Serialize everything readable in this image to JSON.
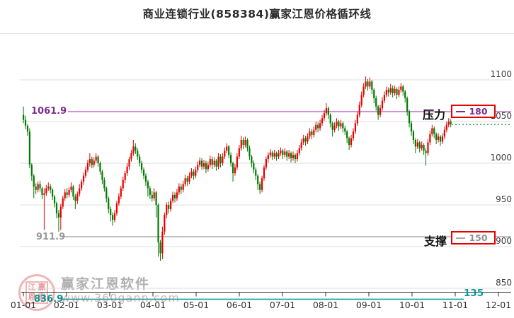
{
  "title": "商业连锁行业(858384)赢家江恩价格循环线",
  "watermark": {
    "brand": "赢家江恩软件",
    "url": "www.360gann.com",
    "seal": [
      "江",
      "赢",
      "恩",
      "家"
    ]
  },
  "colors": {
    "up": "#e60000",
    "down": "#007a00",
    "resistance_line": "#c77fd4",
    "resistance_text": "#7b2d8e",
    "support_line": "#b5b5b5",
    "support_text": "#8f8f8f",
    "cycle_line": "#18a0a0",
    "cycle_text": "#0f9b9b",
    "badge_border": "#e60000",
    "last_price_line": "#2aa04a",
    "grid": "#dcdcdc"
  },
  "chart_data": {
    "type": "candlestick",
    "title": "商业连锁行业(858384)赢家江恩价格循环线",
    "x_tick_labels": [
      "01-01",
      "02-01",
      "03-01",
      "04-01",
      "05-01",
      "06-01",
      "07-01",
      "08-01",
      "09-01",
      "10-01",
      "11-01",
      "12-01"
    ],
    "y_ticks": [
      1100,
      1050,
      1000,
      950,
      900,
      850
    ],
    "y_axis_side": "right",
    "ylim": [
      841,
      1156
    ],
    "grid": true,
    "up_color": "#e60000",
    "down_color": "#007a00",
    "gann_lines": [
      {
        "name": "resistance",
        "tag": "压力",
        "cycle": "180",
        "price_label": "1061.9",
        "value": 1061.9,
        "style": "solid"
      },
      {
        "name": "support",
        "tag": "支撑",
        "cycle": "150",
        "price_label": "911.9",
        "value": 911.9,
        "style": "solid"
      },
      {
        "name": "cycle-base",
        "tag": "",
        "cycle": "135",
        "price_label": "836.9",
        "value": 836.9,
        "style": "solid"
      }
    ],
    "last_price_line": {
      "value": 1046.5,
      "style": "dotted"
    },
    "ohlc": [
      [
        1058,
        1068,
        1048,
        1052
      ],
      [
        1052,
        1057,
        1041,
        1045
      ],
      [
        1045,
        1047,
        1033,
        1038
      ],
      [
        1038,
        1042,
        994,
        998
      ],
      [
        998,
        1000,
        979,
        985
      ],
      [
        985,
        987,
        958,
        972
      ],
      [
        972,
        976,
        963,
        968
      ],
      [
        968,
        978,
        965,
        975
      ],
      [
        975,
        979,
        966,
        970
      ],
      [
        970,
        972,
        957,
        962
      ],
      [
        962,
        970,
        920,
        964
      ],
      [
        964,
        974,
        961,
        970
      ],
      [
        970,
        977,
        967,
        972
      ],
      [
        972,
        975,
        964,
        968
      ],
      [
        968,
        970,
        956,
        960
      ],
      [
        960,
        962,
        947,
        952
      ],
      [
        952,
        954,
        934,
        940
      ],
      [
        940,
        944,
        918,
        935
      ],
      [
        935,
        951,
        920,
        948
      ],
      [
        948,
        961,
        945,
        958
      ],
      [
        958,
        969,
        955,
        965
      ],
      [
        965,
        970,
        958,
        962
      ],
      [
        962,
        971,
        959,
        968
      ],
      [
        968,
        977,
        965,
        972
      ],
      [
        972,
        974,
        956,
        960
      ],
      [
        960,
        963,
        945,
        955
      ],
      [
        955,
        966,
        951,
        963
      ],
      [
        963,
        975,
        960,
        970
      ],
      [
        970,
        981,
        967,
        978
      ],
      [
        978,
        989,
        974,
        985
      ],
      [
        985,
        996,
        982,
        992
      ],
      [
        992,
        1004,
        989,
        1000
      ],
      [
        1000,
        1012,
        996,
        1005
      ],
      [
        1005,
        1008,
        994,
        998
      ],
      [
        998,
        1007,
        995,
        1003
      ],
      [
        1003,
        1012,
        1000,
        1008
      ],
      [
        1008,
        1010,
        996,
        1000
      ],
      [
        1000,
        1002,
        986,
        990
      ],
      [
        990,
        992,
        975,
        980
      ],
      [
        980,
        983,
        966,
        970
      ],
      [
        970,
        972,
        953,
        958
      ],
      [
        958,
        960,
        940,
        945
      ],
      [
        945,
        948,
        930,
        938
      ],
      [
        938,
        941,
        925,
        932
      ],
      [
        932,
        944,
        929,
        940
      ],
      [
        940,
        955,
        937,
        952
      ],
      [
        952,
        964,
        949,
        960
      ],
      [
        960,
        973,
        957,
        970
      ],
      [
        970,
        984,
        967,
        980
      ],
      [
        980,
        991,
        976,
        988
      ],
      [
        988,
        1000,
        985,
        996
      ],
      [
        996,
        1008,
        992,
        1005
      ],
      [
        1005,
        1016,
        1002,
        1012
      ],
      [
        1012,
        1028,
        1009,
        1020
      ],
      [
        1020,
        1024,
        1011,
        1015
      ],
      [
        1015,
        1018,
        1004,
        1008
      ],
      [
        1008,
        1011,
        996,
        1000
      ],
      [
        1000,
        1003,
        988,
        992
      ],
      [
        992,
        995,
        981,
        985
      ],
      [
        985,
        988,
        973,
        978
      ],
      [
        978,
        980,
        960,
        970
      ],
      [
        970,
        973,
        957,
        962
      ],
      [
        962,
        967,
        954,
        958
      ],
      [
        958,
        970,
        955,
        965
      ],
      [
        965,
        967,
        935,
        950
      ],
      [
        950,
        952,
        888,
        905
      ],
      [
        905,
        908,
        883,
        892
      ],
      [
        892,
        924,
        885,
        918
      ],
      [
        918,
        941,
        914,
        938
      ],
      [
        938,
        953,
        934,
        950
      ],
      [
        950,
        954,
        940,
        945
      ],
      [
        945,
        958,
        942,
        955
      ],
      [
        955,
        966,
        952,
        962
      ],
      [
        962,
        965,
        953,
        958
      ],
      [
        958,
        969,
        955,
        965
      ],
      [
        965,
        976,
        962,
        972
      ],
      [
        972,
        975,
        963,
        968
      ],
      [
        968,
        979,
        965,
        975
      ],
      [
        975,
        986,
        972,
        982
      ],
      [
        982,
        985,
        973,
        978
      ],
      [
        978,
        989,
        975,
        985
      ],
      [
        985,
        994,
        982,
        990
      ],
      [
        990,
        993,
        980,
        985
      ],
      [
        985,
        996,
        982,
        992
      ],
      [
        992,
        1002,
        989,
        998
      ],
      [
        998,
        1007,
        995,
        1003
      ],
      [
        1003,
        1006,
        992,
        996
      ],
      [
        996,
        1004,
        993,
        1000
      ],
      [
        1000,
        1003,
        988,
        993
      ],
      [
        993,
        1002,
        990,
        998
      ],
      [
        998,
        1009,
        995,
        1005
      ],
      [
        1005,
        1008,
        993,
        998
      ],
      [
        998,
        1007,
        995,
        1003
      ],
      [
        1003,
        1005,
        991,
        996
      ],
      [
        996,
        1012,
        993,
        1008
      ],
      [
        1008,
        1011,
        995,
        1000
      ],
      [
        1000,
        1012,
        997,
        1008
      ],
      [
        1008,
        1019,
        1005,
        1015
      ],
      [
        1015,
        1024,
        1012,
        1020
      ],
      [
        1020,
        1022,
        1006,
        1010
      ],
      [
        1010,
        1013,
        996,
        1000
      ],
      [
        1000,
        1002,
        978,
        988
      ],
      [
        988,
        999,
        985,
        995
      ],
      [
        995,
        1012,
        992,
        1008
      ],
      [
        1008,
        1022,
        1005,
        1018
      ],
      [
        1018,
        1033,
        1015,
        1028
      ],
      [
        1028,
        1031,
        1017,
        1022
      ],
      [
        1022,
        1032,
        1019,
        1028
      ],
      [
        1028,
        1030,
        1014,
        1018
      ],
      [
        1018,
        1021,
        1004,
        1008
      ],
      [
        1008,
        1010,
        995,
        1000
      ],
      [
        1000,
        1003,
        988,
        992
      ],
      [
        992,
        995,
        980,
        985
      ],
      [
        985,
        987,
        968,
        975
      ],
      [
        975,
        978,
        963,
        968
      ],
      [
        968,
        985,
        965,
        982
      ],
      [
        982,
        998,
        979,
        995
      ],
      [
        995,
        1008,
        992,
        1005
      ],
      [
        1005,
        1013,
        1001,
        1010
      ],
      [
        1010,
        1017,
        1007,
        1013
      ],
      [
        1013,
        1015,
        1004,
        1008
      ],
      [
        1008,
        1016,
        1005,
        1012
      ],
      [
        1012,
        1014,
        1003,
        1008
      ],
      [
        1008,
        1016,
        1005,
        1012
      ],
      [
        1012,
        1019,
        1009,
        1015
      ],
      [
        1015,
        1017,
        1005,
        1010
      ],
      [
        1010,
        1018,
        1007,
        1014
      ],
      [
        1014,
        1016,
        1003,
        1008
      ],
      [
        1008,
        1016,
        1005,
        1012
      ],
      [
        1012,
        1014,
        1001,
        1006
      ],
      [
        1006,
        1014,
        1003,
        1010
      ],
      [
        1010,
        1012,
        1000,
        1005
      ],
      [
        1005,
        1016,
        1002,
        1012
      ],
      [
        1012,
        1022,
        1009,
        1018
      ],
      [
        1018,
        1029,
        1015,
        1025
      ],
      [
        1025,
        1034,
        1022,
        1030
      ],
      [
        1030,
        1033,
        1021,
        1026
      ],
      [
        1026,
        1036,
        1023,
        1032
      ],
      [
        1032,
        1042,
        1029,
        1038
      ],
      [
        1038,
        1041,
        1029,
        1034
      ],
      [
        1034,
        1044,
        1031,
        1040
      ],
      [
        1040,
        1050,
        1037,
        1046
      ],
      [
        1046,
        1049,
        1037,
        1042
      ],
      [
        1042,
        1052,
        1039,
        1048
      ],
      [
        1048,
        1058,
        1045,
        1054
      ],
      [
        1054,
        1064,
        1051,
        1060
      ],
      [
        1060,
        1072,
        1057,
        1066
      ],
      [
        1066,
        1068,
        1053,
        1058
      ],
      [
        1058,
        1060,
        1043,
        1048
      ],
      [
        1048,
        1050,
        1032,
        1040
      ],
      [
        1040,
        1049,
        1037,
        1045
      ],
      [
        1045,
        1054,
        1042,
        1050
      ],
      [
        1050,
        1052,
        1039,
        1044
      ],
      [
        1044,
        1052,
        1041,
        1048
      ],
      [
        1048,
        1050,
        1037,
        1042
      ],
      [
        1042,
        1045,
        1034,
        1038
      ],
      [
        1038,
        1040,
        1024,
        1030
      ],
      [
        1030,
        1032,
        1016,
        1022
      ],
      [
        1022,
        1034,
        1019,
        1030
      ],
      [
        1030,
        1042,
        1027,
        1038
      ],
      [
        1038,
        1052,
        1035,
        1048
      ],
      [
        1048,
        1062,
        1045,
        1058
      ],
      [
        1058,
        1074,
        1055,
        1070
      ],
      [
        1070,
        1086,
        1067,
        1082
      ],
      [
        1082,
        1096,
        1079,
        1092
      ],
      [
        1092,
        1104,
        1089,
        1098
      ],
      [
        1098,
        1101,
        1087,
        1092
      ],
      [
        1092,
        1103,
        1089,
        1098
      ],
      [
        1098,
        1100,
        1083,
        1088
      ],
      [
        1088,
        1090,
        1072,
        1078
      ],
      [
        1078,
        1081,
        1063,
        1068
      ],
      [
        1068,
        1070,
        1052,
        1058
      ],
      [
        1058,
        1070,
        1055,
        1066
      ],
      [
        1066,
        1079,
        1063,
        1075
      ],
      [
        1075,
        1086,
        1072,
        1082
      ],
      [
        1082,
        1092,
        1079,
        1088
      ],
      [
        1088,
        1091,
        1080,
        1085
      ],
      [
        1085,
        1095,
        1082,
        1090
      ],
      [
        1090,
        1093,
        1079,
        1084
      ],
      [
        1084,
        1093,
        1081,
        1089
      ],
      [
        1089,
        1091,
        1077,
        1082
      ],
      [
        1082,
        1092,
        1079,
        1088
      ],
      [
        1088,
        1096,
        1085,
        1092
      ],
      [
        1092,
        1094,
        1081,
        1086
      ],
      [
        1086,
        1088,
        1073,
        1078
      ],
      [
        1078,
        1080,
        1057,
        1062
      ],
      [
        1062,
        1064,
        1043,
        1048
      ],
      [
        1048,
        1051,
        1033,
        1038
      ],
      [
        1038,
        1040,
        1023,
        1028
      ],
      [
        1028,
        1030,
        1012,
        1020
      ],
      [
        1020,
        1029,
        1017,
        1025
      ],
      [
        1025,
        1027,
        1013,
        1018
      ],
      [
        1018,
        1026,
        1015,
        1022
      ],
      [
        1022,
        1024,
        1010,
        1015
      ],
      [
        1015,
        1018,
        997,
        1012
      ],
      [
        1012,
        1029,
        1009,
        1025
      ],
      [
        1025,
        1039,
        1022,
        1035
      ],
      [
        1035,
        1046,
        1032,
        1042
      ],
      [
        1042,
        1044,
        1030,
        1035
      ],
      [
        1035,
        1037,
        1023,
        1028
      ],
      [
        1028,
        1036,
        1025,
        1032
      ],
      [
        1032,
        1034,
        1021,
        1026
      ],
      [
        1026,
        1036,
        1023,
        1032
      ],
      [
        1032,
        1044,
        1029,
        1040
      ],
      [
        1040,
        1050,
        1037,
        1046
      ],
      [
        1046,
        1054,
        1043,
        1050
      ],
      [
        1050,
        1053,
        1043,
        1047
      ]
    ]
  }
}
